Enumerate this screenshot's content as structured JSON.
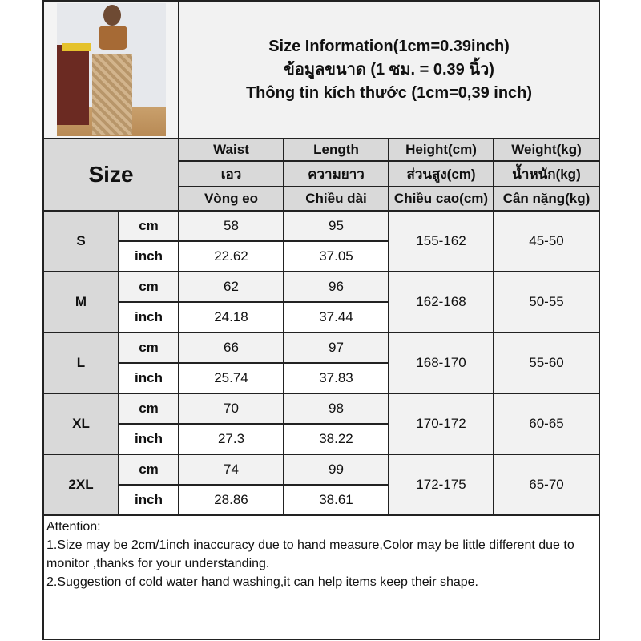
{
  "title": {
    "line1": "Size Information(1cm=0.39inch)",
    "line2": "ข้อมูลขนาด (1 ซม. = 0.39 นิ้ว)",
    "line3": "Thông tin kích thước (1cm=0,39 inch)"
  },
  "header": {
    "size_label": "Size",
    "columns": [
      {
        "en": "Waist",
        "th": "เอว",
        "vi": "Vòng eo"
      },
      {
        "en": "Length",
        "th": "ความยาว",
        "vi": "Chiều dài"
      },
      {
        "en": "Height(cm)",
        "th": "ส่วนสูง(cm)",
        "vi": "Chiều cao(cm)"
      },
      {
        "en": "Weight(kg)",
        "th": "น้ำหนัก(kg)",
        "vi": "Cân nặng(kg)"
      }
    ]
  },
  "units": {
    "cm": "cm",
    "inch": "inch"
  },
  "rows": [
    {
      "size": "S",
      "waist_cm": "58",
      "length_cm": "95",
      "waist_in": "22.62",
      "length_in": "37.05",
      "height": "155-162",
      "weight": "45-50"
    },
    {
      "size": "M",
      "waist_cm": "62",
      "length_cm": "96",
      "waist_in": "24.18",
      "length_in": "37.44",
      "height": "162-168",
      "weight": "50-55"
    },
    {
      "size": "L",
      "waist_cm": "66",
      "length_cm": "97",
      "waist_in": "25.74",
      "length_in": "37.83",
      "height": "168-170",
      "weight": "55-60"
    },
    {
      "size": "XL",
      "waist_cm": "70",
      "length_cm": "98",
      "waist_in": "27.3",
      "length_in": "38.22",
      "height": "170-172",
      "weight": "60-65"
    },
    {
      "size": "2XL",
      "waist_cm": "74",
      "length_cm": "99",
      "waist_in": "28.86",
      "length_in": "38.61",
      "height": "172-175",
      "weight": "65-70"
    }
  ],
  "attention": {
    "heading": "Attention:",
    "note1": "1.Size may be 2cm/1inch inaccuracy due to hand measure,Color may be little different due to monitor ,thanks for your understanding.",
    "note2": "2.Suggestion of cold water hand washing,it can help items keep their shape."
  }
}
